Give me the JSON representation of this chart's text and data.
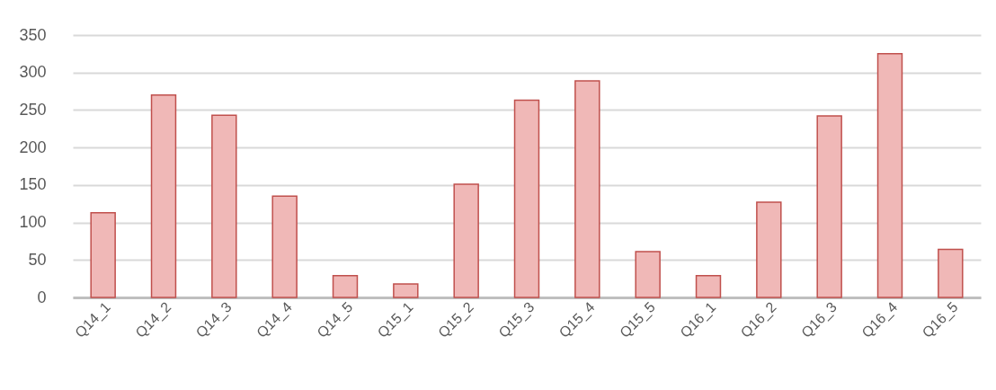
{
  "chart_data": {
    "type": "bar",
    "categories": [
      "Q14_1",
      "Q14_2",
      "Q14_3",
      "Q14_4",
      "Q14_5",
      "Q15_1",
      "Q15_2",
      "Q15_3",
      "Q15_4",
      "Q15_5",
      "Q16_1",
      "Q16_2",
      "Q16_3",
      "Q16_4",
      "Q16_5"
    ],
    "values": [
      113,
      270,
      243,
      135,
      29,
      18,
      151,
      263,
      289,
      61,
      29,
      127,
      242,
      325,
      64
    ],
    "color": "#f0b8b7",
    "ylim": [
      0,
      350
    ],
    "yticks": [
      0,
      50,
      100,
      150,
      200,
      250,
      300,
      350
    ],
    "grid": "y"
  }
}
